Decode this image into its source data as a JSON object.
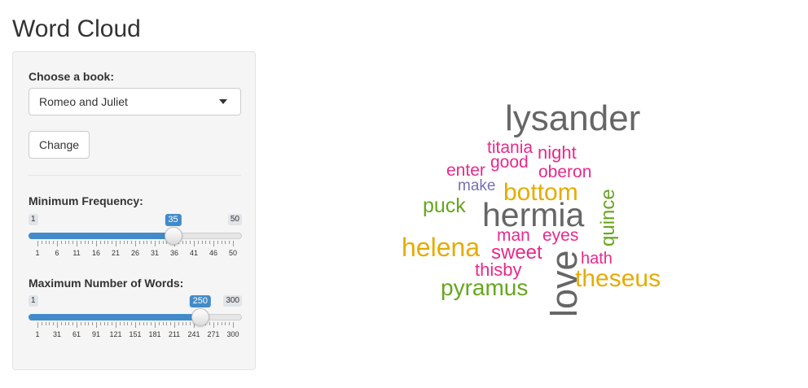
{
  "title": "Word Cloud",
  "book": {
    "label": "Choose a book:",
    "selected": "Romeo and Juliet"
  },
  "change_button": "Change",
  "min_freq": {
    "label": "Minimum Frequency:",
    "min": "1",
    "max": "50",
    "value": "35",
    "ticks": [
      "1",
      "6",
      "11",
      "16",
      "21",
      "26",
      "31",
      "36",
      "41",
      "46",
      "50"
    ]
  },
  "max_words": {
    "label": "Maximum Number of Words:",
    "min": "1",
    "max": "300",
    "value": "250",
    "ticks": [
      "1",
      "31",
      "61",
      "91",
      "121",
      "151",
      "181",
      "211",
      "241",
      "271",
      "300"
    ]
  },
  "colors": {
    "accent": "#428bca",
    "gray": "#666666",
    "magenta": "#e7298a",
    "gold": "#e6ab02",
    "green": "#66a61e",
    "purple": "#7570b3"
  },
  "cloud": {
    "lysander": "lysander",
    "titania": "titania",
    "night": "night",
    "enter": "enter",
    "good": "good",
    "oberon": "oberon",
    "make": "make",
    "bottom": "bottom",
    "quince": "quince",
    "puck": "puck",
    "hermia": "hermia",
    "helena": "helena",
    "man": "man",
    "eyes": "eyes",
    "sweet": "sweet",
    "love": "love",
    "hath": "hath",
    "thisby": "thisby",
    "theseus": "theseus",
    "pyramus": "pyramus"
  }
}
